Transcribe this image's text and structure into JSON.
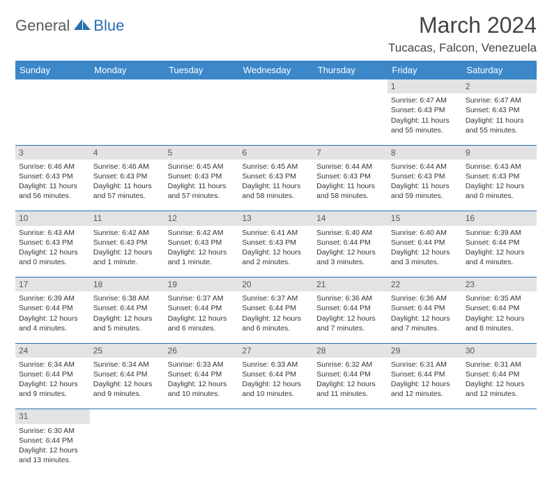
{
  "brand": {
    "part1": "General",
    "part2": "Blue"
  },
  "title": "March 2024",
  "location": "Tucacas, Falcon, Venezuela",
  "colors": {
    "header_bg": "#3b87c8",
    "header_text": "#ffffff",
    "daynum_bg": "#e3e3e3",
    "rule": "#2a6fb0",
    "logo_gray": "#5a5a5a",
    "logo_blue": "#2a6fb0",
    "page_bg": "#ffffff",
    "body_text": "#333333"
  },
  "fonts": {
    "title_pt": 32,
    "location_pt": 17,
    "th_pt": 13,
    "daynum_pt": 12,
    "cell_pt": 10.5
  },
  "weekdays": [
    "Sunday",
    "Monday",
    "Tuesday",
    "Wednesday",
    "Thursday",
    "Friday",
    "Saturday"
  ],
  "weeks": [
    [
      {
        "day": "",
        "text": ""
      },
      {
        "day": "",
        "text": ""
      },
      {
        "day": "",
        "text": ""
      },
      {
        "day": "",
        "text": ""
      },
      {
        "day": "",
        "text": ""
      },
      {
        "day": "1",
        "text": "Sunrise: 6:47 AM\nSunset: 6:43 PM\nDaylight: 11 hours and 55 minutes."
      },
      {
        "day": "2",
        "text": "Sunrise: 6:47 AM\nSunset: 6:43 PM\nDaylight: 11 hours and 55 minutes."
      }
    ],
    [
      {
        "day": "3",
        "text": "Sunrise: 6:46 AM\nSunset: 6:43 PM\nDaylight: 11 hours and 56 minutes."
      },
      {
        "day": "4",
        "text": "Sunrise: 6:46 AM\nSunset: 6:43 PM\nDaylight: 11 hours and 57 minutes."
      },
      {
        "day": "5",
        "text": "Sunrise: 6:45 AM\nSunset: 6:43 PM\nDaylight: 11 hours and 57 minutes."
      },
      {
        "day": "6",
        "text": "Sunrise: 6:45 AM\nSunset: 6:43 PM\nDaylight: 11 hours and 58 minutes."
      },
      {
        "day": "7",
        "text": "Sunrise: 6:44 AM\nSunset: 6:43 PM\nDaylight: 11 hours and 58 minutes."
      },
      {
        "day": "8",
        "text": "Sunrise: 6:44 AM\nSunset: 6:43 PM\nDaylight: 11 hours and 59 minutes."
      },
      {
        "day": "9",
        "text": "Sunrise: 6:43 AM\nSunset: 6:43 PM\nDaylight: 12 hours and 0 minutes."
      }
    ],
    [
      {
        "day": "10",
        "text": "Sunrise: 6:43 AM\nSunset: 6:43 PM\nDaylight: 12 hours and 0 minutes."
      },
      {
        "day": "11",
        "text": "Sunrise: 6:42 AM\nSunset: 6:43 PM\nDaylight: 12 hours and 1 minute."
      },
      {
        "day": "12",
        "text": "Sunrise: 6:42 AM\nSunset: 6:43 PM\nDaylight: 12 hours and 1 minute."
      },
      {
        "day": "13",
        "text": "Sunrise: 6:41 AM\nSunset: 6:43 PM\nDaylight: 12 hours and 2 minutes."
      },
      {
        "day": "14",
        "text": "Sunrise: 6:40 AM\nSunset: 6:44 PM\nDaylight: 12 hours and 3 minutes."
      },
      {
        "day": "15",
        "text": "Sunrise: 6:40 AM\nSunset: 6:44 PM\nDaylight: 12 hours and 3 minutes."
      },
      {
        "day": "16",
        "text": "Sunrise: 6:39 AM\nSunset: 6:44 PM\nDaylight: 12 hours and 4 minutes."
      }
    ],
    [
      {
        "day": "17",
        "text": "Sunrise: 6:39 AM\nSunset: 6:44 PM\nDaylight: 12 hours and 4 minutes."
      },
      {
        "day": "18",
        "text": "Sunrise: 6:38 AM\nSunset: 6:44 PM\nDaylight: 12 hours and 5 minutes."
      },
      {
        "day": "19",
        "text": "Sunrise: 6:37 AM\nSunset: 6:44 PM\nDaylight: 12 hours and 6 minutes."
      },
      {
        "day": "20",
        "text": "Sunrise: 6:37 AM\nSunset: 6:44 PM\nDaylight: 12 hours and 6 minutes."
      },
      {
        "day": "21",
        "text": "Sunrise: 6:36 AM\nSunset: 6:44 PM\nDaylight: 12 hours and 7 minutes."
      },
      {
        "day": "22",
        "text": "Sunrise: 6:36 AM\nSunset: 6:44 PM\nDaylight: 12 hours and 7 minutes."
      },
      {
        "day": "23",
        "text": "Sunrise: 6:35 AM\nSunset: 6:44 PM\nDaylight: 12 hours and 8 minutes."
      }
    ],
    [
      {
        "day": "24",
        "text": "Sunrise: 6:34 AM\nSunset: 6:44 PM\nDaylight: 12 hours and 9 minutes."
      },
      {
        "day": "25",
        "text": "Sunrise: 6:34 AM\nSunset: 6:44 PM\nDaylight: 12 hours and 9 minutes."
      },
      {
        "day": "26",
        "text": "Sunrise: 6:33 AM\nSunset: 6:44 PM\nDaylight: 12 hours and 10 minutes."
      },
      {
        "day": "27",
        "text": "Sunrise: 6:33 AM\nSunset: 6:44 PM\nDaylight: 12 hours and 10 minutes."
      },
      {
        "day": "28",
        "text": "Sunrise: 6:32 AM\nSunset: 6:44 PM\nDaylight: 12 hours and 11 minutes."
      },
      {
        "day": "29",
        "text": "Sunrise: 6:31 AM\nSunset: 6:44 PM\nDaylight: 12 hours and 12 minutes."
      },
      {
        "day": "30",
        "text": "Sunrise: 6:31 AM\nSunset: 6:44 PM\nDaylight: 12 hours and 12 minutes."
      }
    ],
    [
      {
        "day": "31",
        "text": "Sunrise: 6:30 AM\nSunset: 6:44 PM\nDaylight: 12 hours and 13 minutes."
      },
      {
        "day": "",
        "text": ""
      },
      {
        "day": "",
        "text": ""
      },
      {
        "day": "",
        "text": ""
      },
      {
        "day": "",
        "text": ""
      },
      {
        "day": "",
        "text": ""
      },
      {
        "day": "",
        "text": ""
      }
    ]
  ]
}
